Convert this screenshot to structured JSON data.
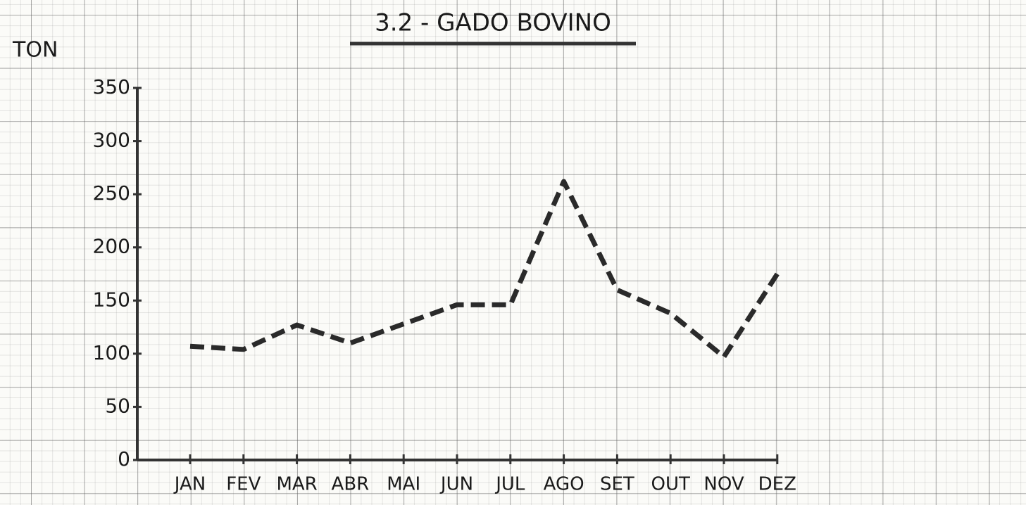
{
  "chart_data": {
    "type": "line",
    "title": "3.2 - GADO BOVINO",
    "ylabel": "TON",
    "categories": [
      "JAN",
      "FEV",
      "MAR",
      "ABR",
      "MAI",
      "JUN",
      "JUL",
      "AGO",
      "SET",
      "OUT",
      "NOV",
      "DEZ"
    ],
    "series": [
      {
        "name": "GADO BOVINO",
        "color": "#2a2a2a",
        "values": [
          107,
          104,
          127,
          110,
          128,
          146,
          146,
          262,
          160,
          138,
          97,
          175
        ]
      }
    ],
    "ylim": [
      0,
      350
    ],
    "yticks": [
      0,
      50,
      100,
      150,
      200,
      250,
      300,
      350
    ]
  }
}
